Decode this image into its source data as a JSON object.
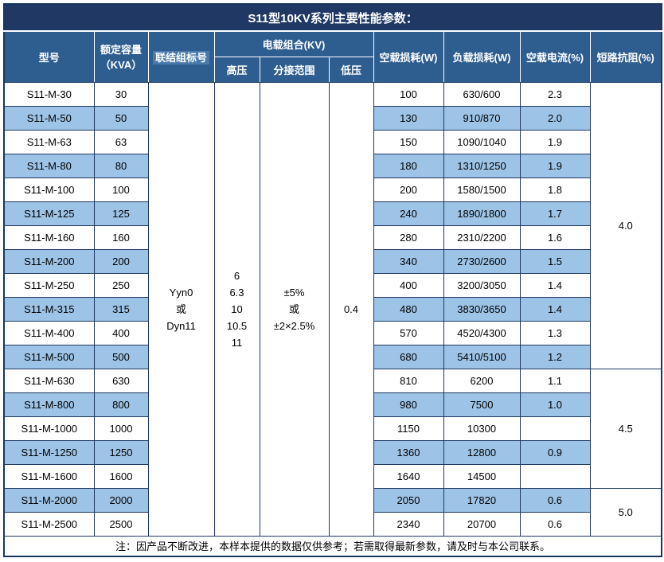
{
  "title": "S11型10KV系列主要性能参数：",
  "header": {
    "model": "型号",
    "capacity_l1": "额定容量",
    "capacity_l2": "（KVA）",
    "connection": "联结组标号",
    "voltage_combo": "电载组合(KV)",
    "hv": "高压",
    "tap_range": "分接范围",
    "lv": "低压",
    "no_load_loss": "空载损耗(W)",
    "load_loss": "负载损耗(W)",
    "no_load_current": "空载电流(%)",
    "impedance": "短路抗阻(%)"
  },
  "merged": {
    "connection_lines": [
      "Yyn0",
      "或",
      "Dyn11"
    ],
    "hv_lines": [
      "6",
      "6.3",
      "10",
      "10.5",
      "11"
    ],
    "tap_lines": [
      "±5%",
      "或",
      "±2×2.5%"
    ],
    "lv": "0.4",
    "impedance_groups": [
      {
        "value": "4.0",
        "rows": 12
      },
      {
        "value": "4.5",
        "rows": 5
      },
      {
        "value": "5.0",
        "rows": 2
      }
    ]
  },
  "rows": [
    {
      "model": "S11-M-30",
      "capacity": "30",
      "no_load_loss": "100",
      "load_loss": "630/600",
      "no_load_current": "2.3"
    },
    {
      "model": "S11-M-50",
      "capacity": "50",
      "no_load_loss": "130",
      "load_loss": "910/870",
      "no_load_current": "2.0"
    },
    {
      "model": "S11-M-63",
      "capacity": "63",
      "no_load_loss": "150",
      "load_loss": "1090/1040",
      "no_load_current": "1.9"
    },
    {
      "model": "S11-M-80",
      "capacity": "80",
      "no_load_loss": "180",
      "load_loss": "1310/1250",
      "no_load_current": "1.9"
    },
    {
      "model": "S11-M-100",
      "capacity": "100",
      "no_load_loss": "200",
      "load_loss": "1580/1500",
      "no_load_current": "1.8"
    },
    {
      "model": "S11-M-125",
      "capacity": "125",
      "no_load_loss": "240",
      "load_loss": "1890/1800",
      "no_load_current": "1.7"
    },
    {
      "model": "S11-M-160",
      "capacity": "160",
      "no_load_loss": "280",
      "load_loss": "2310/2200",
      "no_load_current": "1.6"
    },
    {
      "model": "S11-M-200",
      "capacity": "200",
      "no_load_loss": "340",
      "load_loss": "2730/2600",
      "no_load_current": "1.5"
    },
    {
      "model": "S11-M-250",
      "capacity": "250",
      "no_load_loss": "400",
      "load_loss": "3200/3050",
      "no_load_current": "1.4"
    },
    {
      "model": "S11-M-315",
      "capacity": "315",
      "no_load_loss": "480",
      "load_loss": "3830/3650",
      "no_load_current": "1.4"
    },
    {
      "model": "S11-M-400",
      "capacity": "400",
      "no_load_loss": "570",
      "load_loss": "4520/4300",
      "no_load_current": "1.3"
    },
    {
      "model": "S11-M-500",
      "capacity": "500",
      "no_load_loss": "680",
      "load_loss": "5410/5100",
      "no_load_current": "1.2"
    },
    {
      "model": "S11-M-630",
      "capacity": "630",
      "no_load_loss": "810",
      "load_loss": "6200",
      "no_load_current": "1.1"
    },
    {
      "model": "S11-M-800",
      "capacity": "800",
      "no_load_loss": "980",
      "load_loss": "7500",
      "no_load_current": "1.0"
    },
    {
      "model": "S11-M-1000",
      "capacity": "1000",
      "no_load_loss": "1150",
      "load_loss": "10300",
      "no_load_current": ""
    },
    {
      "model": "S11-M-1250",
      "capacity": "1250",
      "no_load_loss": "1360",
      "load_loss": "12800",
      "no_load_current": "0.9"
    },
    {
      "model": "S11-M-1600",
      "capacity": "1600",
      "no_load_loss": "1640",
      "load_loss": "14500",
      "no_load_current": ""
    },
    {
      "model": "S11-M-2000",
      "capacity": "2000",
      "no_load_loss": "2050",
      "load_loss": "17820",
      "no_load_current": "0.6"
    },
    {
      "model": "S11-M-2500",
      "capacity": "2500",
      "no_load_loss": "2340",
      "load_loss": "20700",
      "no_load_current": "0.6"
    }
  ],
  "footer_note": "注：因产品不断改进，本样本提供的数据仅供参考；若需取得最新参数，请及时与本公司联系。"
}
